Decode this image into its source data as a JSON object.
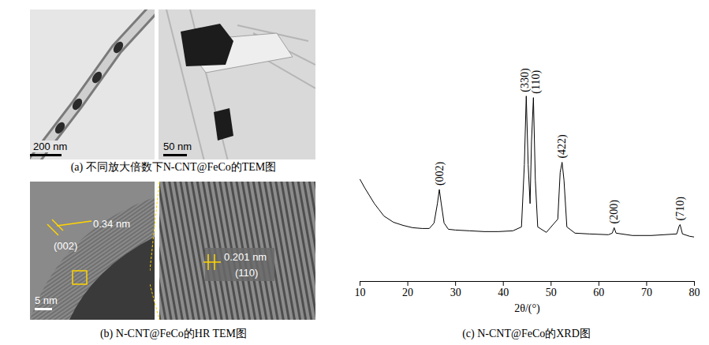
{
  "panels": [
    {
      "caption": "(a) 不同放大倍数下N-CNT@FeCo的TEM图",
      "images": [
        {
          "scale_bar": "200 nm"
        },
        {
          "scale_bar": "50 nm"
        }
      ]
    },
    {
      "caption": "(b) N-CNT@FeCo的HR TEM图",
      "images": [
        {
          "scale_bar": "5 nm",
          "spacing": "0.34 nm",
          "plane": "(002)"
        },
        {
          "spacing": "0.201 nm",
          "plane": "(110)"
        }
      ]
    }
  ],
  "chart_data": {
    "type": "line",
    "title": "(c) N-CNT@FeCo的XRD图",
    "x_label": "2θ/(°)",
    "x": [
      10,
      11,
      12,
      13,
      14,
      15,
      17,
      19,
      21,
      23,
      24.5,
      25.5,
      26.2,
      26.6,
      27.0,
      27.6,
      28.5,
      30,
      33,
      36,
      39,
      42,
      43.8,
      44.4,
      44.8,
      45.2,
      45.6,
      45.9,
      46.3,
      46.7,
      47.2,
      49,
      51.4,
      51.9,
      52.3,
      52.7,
      53.3,
      55,
      58,
      62,
      62.8,
      63.2,
      63.6,
      67,
      71,
      76.3,
      76.8,
      77.0,
      77.5,
      79,
      80
    ],
    "values": [
      131,
      120,
      110,
      100,
      92,
      84,
      76,
      72,
      69,
      68,
      68,
      75,
      100,
      118,
      100,
      75,
      67,
      66,
      65,
      64,
      64,
      65,
      70,
      150,
      238,
      150,
      100,
      180,
      236,
      130,
      70,
      63,
      80,
      140,
      153,
      130,
      70,
      62,
      61,
      60,
      62,
      69,
      62,
      59,
      59,
      61,
      71,
      73,
      61,
      58,
      57
    ],
    "color": "#000000",
    "xlim": [
      10,
      80
    ],
    "xticks": [
      10,
      20,
      30,
      40,
      50,
      60,
      70,
      80
    ],
    "ylim": [
      0,
      300
    ],
    "tick_labels": "x",
    "annotations": [
      {
        "x": 26.6,
        "text": "(002)"
      },
      {
        "x": 44.5,
        "text": "(330)"
      },
      {
        "x": 46.8,
        "text": "(110)"
      },
      {
        "x": 52.3,
        "text": "(422)"
      },
      {
        "x": 63.2,
        "text": "(200)"
      },
      {
        "x": 77.0,
        "text": "(710)"
      }
    ]
  }
}
